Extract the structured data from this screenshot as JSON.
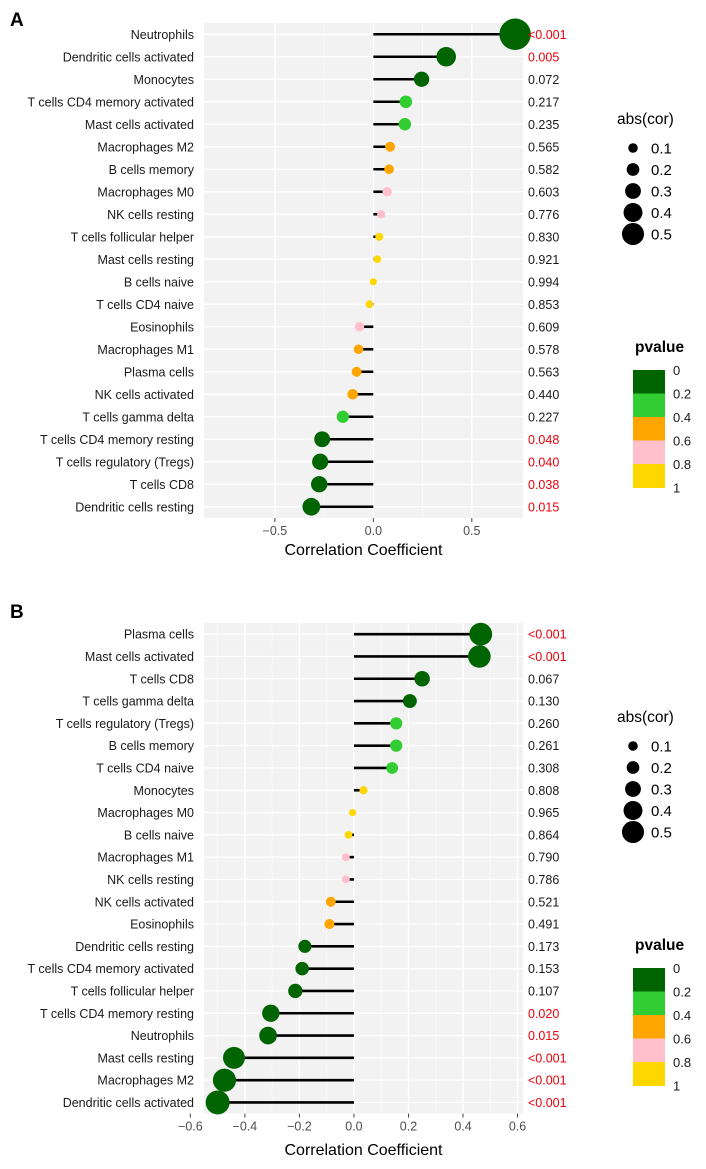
{
  "chart_data": [
    {
      "type": "lollipop",
      "panel_label": "A",
      "xlabel": "Correlation Coefficient",
      "xticks": [
        -0.5,
        0,
        0.5
      ],
      "xtick_labels": [
        "−0.5",
        "0.0",
        "0.5"
      ],
      "xlim": [
        -0.86,
        0.76
      ],
      "categories": [
        "Neutrophils",
        "Dendritic cells activated",
        "Monocytes",
        "T cells CD4 memory activated",
        "Mast cells activated",
        "Macrophages M2",
        "B cells memory",
        "Macrophages M0",
        "NK cells resting",
        "T cells follicular helper",
        "Mast cells resting",
        "B cells naive",
        "T cells CD4 naive",
        "Eosinophils",
        "Macrophages M1",
        "Plasma cells",
        "NK cells activated",
        "T cells gamma delta",
        "T cells CD4 memory resting",
        "T cells regulatory (Tregs)",
        "T cells CD8",
        "Dendritic cells resting"
      ],
      "values": [
        0.72,
        0.37,
        0.245,
        0.165,
        0.16,
        0.085,
        0.08,
        0.07,
        0.04,
        0.03,
        0.02,
        0.0,
        -0.02,
        -0.07,
        -0.075,
        -0.085,
        -0.105,
        -0.155,
        -0.26,
        -0.27,
        -0.275,
        -0.315
      ],
      "pvalue_labels": [
        "<0.001",
        "0.005",
        "0.072",
        "0.217",
        "0.235",
        "0.565",
        "0.582",
        "0.603",
        "0.776",
        "0.830",
        "0.921",
        "0.994",
        "0.853",
        "0.609",
        "0.578",
        "0.563",
        "0.440",
        "0.227",
        "0.048",
        "0.040",
        "0.038",
        "0.015"
      ],
      "pvalues": [
        0.0005,
        0.005,
        0.072,
        0.217,
        0.235,
        0.565,
        0.582,
        0.603,
        0.776,
        0.83,
        0.921,
        0.994,
        0.853,
        0.609,
        0.578,
        0.563,
        0.44,
        0.227,
        0.048,
        0.04,
        0.038,
        0.015
      ],
      "size_legend": {
        "title": "abs(cor)",
        "values": [
          0.1,
          0.2,
          0.3,
          0.4,
          0.5
        ],
        "labels": [
          "0.1",
          "0.2",
          "0.3",
          "0.4",
          "0.5"
        ]
      },
      "color_legend": {
        "title": "pvalue",
        "labels": [
          "0",
          "0.2",
          "0.4",
          "0.6",
          "0.8",
          "1"
        ],
        "colors": [
          "#006400",
          "#32CD32",
          "#FFA500",
          "#FFC0CB",
          "#FFD700"
        ]
      }
    },
    {
      "type": "lollipop",
      "panel_label": "B",
      "xlabel": "Correlation Coefficient",
      "xticks": [
        -0.6,
        -0.4,
        -0.2,
        0,
        0.2,
        0.4,
        0.6
      ],
      "xtick_labels": [
        "−0.6",
        "−0.4",
        "−0.2",
        "0.0",
        "0.2",
        "0.4",
        "0.6"
      ],
      "xlim": [
        -0.55,
        0.62
      ],
      "categories": [
        "Plasma cells",
        "Mast cells activated",
        "T cells CD8",
        "T cells gamma delta",
        "T cells regulatory (Tregs)",
        "B cells memory",
        "T cells CD4 naive",
        "Monocytes",
        "Macrophages M0",
        "B cells naive",
        "Macrophages M1",
        "NK cells resting",
        "NK cells activated",
        "Eosinophils",
        "Dendritic cells resting",
        "T cells CD4 memory activated",
        "T cells follicular helper",
        "T cells CD4 memory resting",
        "Neutrophils",
        "Mast cells resting",
        "Macrophages M2",
        "Dendritic cells activated"
      ],
      "values": [
        0.465,
        0.46,
        0.25,
        0.205,
        0.155,
        0.155,
        0.14,
        0.035,
        -0.005,
        -0.02,
        -0.03,
        -0.03,
        -0.085,
        -0.09,
        -0.18,
        -0.19,
        -0.215,
        -0.305,
        -0.315,
        -0.44,
        -0.475,
        -0.5
      ],
      "pvalue_labels": [
        "<0.001",
        "<0.001",
        "0.067",
        "0.130",
        "0.260",
        "0.261",
        "0.308",
        "0.808",
        "0.965",
        "0.864",
        "0.790",
        "0.786",
        "0.521",
        "0.491",
        "0.173",
        "0.153",
        "0.107",
        "0.020",
        "0.015",
        "<0.001",
        "<0.001",
        "<0.001"
      ],
      "pvalues": [
        0.0005,
        0.0005,
        0.067,
        0.13,
        0.26,
        0.261,
        0.308,
        0.808,
        0.965,
        0.864,
        0.79,
        0.786,
        0.521,
        0.491,
        0.173,
        0.153,
        0.107,
        0.02,
        0.015,
        0.0005,
        0.0005,
        0.0005
      ],
      "size_legend": {
        "title": "abs(cor)",
        "values": [
          0.1,
          0.2,
          0.3,
          0.4,
          0.5
        ],
        "labels": [
          "0.1",
          "0.2",
          "0.3",
          "0.4",
          "0.5"
        ]
      },
      "color_legend": {
        "title": "pvalue",
        "labels": [
          "0",
          "0.2",
          "0.4",
          "0.6",
          "0.8",
          "1"
        ],
        "colors": [
          "#006400",
          "#32CD32",
          "#FFA500",
          "#FFC0CB",
          "#FFD700"
        ]
      }
    }
  ]
}
